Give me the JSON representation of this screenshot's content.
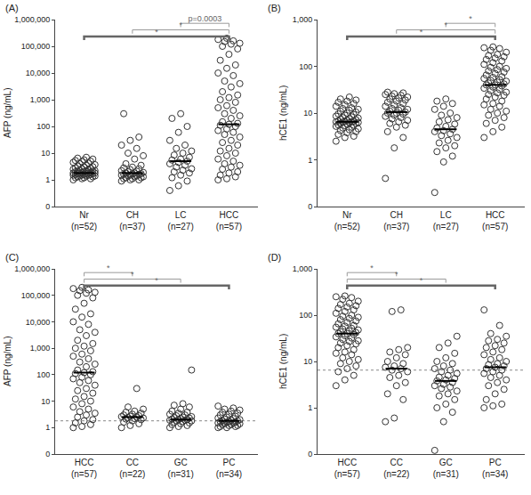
{
  "chart_data": [
    {
      "type": "scatter",
      "title": "(A)",
      "y_label": "AFP (ng/mL)",
      "categories": [
        "Nr",
        "CH",
        "LC",
        "HCC"
      ],
      "n_labels": [
        "(n=52)",
        "(n=37)",
        "(n=27)",
        "(n=57)"
      ],
      "values": [
        [
          1.0,
          1.1,
          1.1,
          1.2,
          1.2,
          1.3,
          1.3,
          1.4,
          1.4,
          1.4,
          1.5,
          1.5,
          1.5,
          1.6,
          1.6,
          1.6,
          1.7,
          1.7,
          1.7,
          1.8,
          1.8,
          1.8,
          1.8,
          1.9,
          1.9,
          2.0,
          2.0,
          2.1,
          2.1,
          2.2,
          2.2,
          2.3,
          2.4,
          2.5,
          2.6,
          2.7,
          2.8,
          3.0,
          3.1,
          3.3,
          3.5,
          3.7,
          4.0,
          4.2,
          4.5,
          4.8,
          5.0,
          5.3,
          5.6,
          6.0,
          6.5,
          7.0
        ],
        [
          0.9,
          1.0,
          1.0,
          1.1,
          1.1,
          1.2,
          1.2,
          1.3,
          1.3,
          1.4,
          1.4,
          1.5,
          1.5,
          1.6,
          1.6,
          1.7,
          1.7,
          1.8,
          1.8,
          1.9,
          2.0,
          2.1,
          2.2,
          2.4,
          2.6,
          2.8,
          3.0,
          3.5,
          4.0,
          6.0,
          8.0,
          10,
          15,
          20,
          30,
          40,
          300
        ],
        [
          0.4,
          0.6,
          0.9,
          1.2,
          1.5,
          1.8,
          2.0,
          2.3,
          2.6,
          3.0,
          3.5,
          4.0,
          4.5,
          5.0,
          5.5,
          6.0,
          7.0,
          8.5,
          10,
          12,
          15,
          20,
          30,
          60,
          100,
          200,
          300
        ],
        [
          1.0,
          1.1,
          1.3,
          1.5,
          1.8,
          2.0,
          2.5,
          3.0,
          3.5,
          4.0,
          5.0,
          6.0,
          8.0,
          10,
          12,
          15,
          20,
          25,
          30,
          40,
          50,
          60,
          70,
          80,
          100,
          110,
          120,
          130,
          150,
          200,
          250,
          300,
          400,
          500,
          600,
          800,
          1000,
          1200,
          1500,
          2000,
          3000,
          4000,
          5000,
          8000,
          10000,
          15000,
          20000,
          30000,
          50000,
          80000,
          100000,
          120000,
          130000,
          150000,
          160000,
          180000,
          200000
        ]
      ],
      "medians": [
        1.8,
        1.8,
        5,
        120
      ],
      "log": "y",
      "grid": false,
      "ylim": [
        0.1,
        1000000
      ],
      "yticks": [
        {
          "value": 0.1,
          "label": "0"
        },
        1,
        10,
        100,
        {
          "value": 1000,
          "label": "1,000"
        },
        {
          "value": 10000,
          "label": "10,000"
        },
        {
          "value": 100000,
          "label": "100,000"
        },
        {
          "value": 1000000,
          "label": "1,000,000"
        }
      ],
      "comparisons": [
        {
          "from": "LC",
          "to": "HCC",
          "text": "p=0.0003"
        },
        {
          "from": "CH",
          "to": "HCC",
          "text": "*"
        },
        {
          "from": "Nr",
          "to": "HCC",
          "text": "*"
        }
      ]
    },
    {
      "type": "scatter",
      "title": "(B)",
      "y_label": "hCE1 (ng/mL)",
      "categories": [
        "Nr",
        "CH",
        "LC",
        "HCC"
      ],
      "n_labels": [
        "(n=52)",
        "(n=37)",
        "(n=27)",
        "(n=57)"
      ],
      "values": [
        [
          2.5,
          3.0,
          3.2,
          3.5,
          3.8,
          4.0,
          4.2,
          4.4,
          4.6,
          4.8,
          5.0,
          5.2,
          5.4,
          5.5,
          5.6,
          5.8,
          6.0,
          6.0,
          6.2,
          6.3,
          6.4,
          6.5,
          6.5,
          6.6,
          6.7,
          6.8,
          7.0,
          7.2,
          7.4,
          7.6,
          7.8,
          8.0,
          8.3,
          8.6,
          9.0,
          9.3,
          9.6,
          10,
          10.5,
          11,
          11.5,
          12,
          12.5,
          13,
          14,
          15,
          16,
          17,
          18,
          19,
          20,
          22
        ],
        [
          0.4,
          1.8,
          3.0,
          4.0,
          5.0,
          5.5,
          6.0,
          6.5,
          7.0,
          7.5,
          8.0,
          8.5,
          9.0,
          9.5,
          10,
          10,
          10.5,
          11,
          11.5,
          12,
          12.5,
          13,
          14,
          15,
          16,
          17,
          18,
          19,
          20,
          21,
          22,
          23,
          24,
          25,
          26,
          27,
          28
        ],
        [
          0.2,
          0.9,
          1.2,
          1.5,
          1.8,
          2.0,
          2.3,
          2.6,
          3.0,
          3.3,
          3.6,
          4.0,
          4.2,
          4.5,
          4.8,
          5.2,
          5.8,
          6.5,
          7.2,
          8.0,
          9.0,
          10,
          12,
          14,
          16,
          18,
          20
        ],
        [
          3.0,
          4.0,
          5.0,
          6.0,
          7.0,
          8.0,
          9.0,
          10,
          11,
          12,
          14,
          15,
          16,
          18,
          20,
          22,
          24,
          25,
          27,
          28,
          30,
          32,
          34,
          36,
          38,
          40,
          40,
          42,
          44,
          46,
          48,
          50,
          52,
          55,
          58,
          60,
          65,
          70,
          75,
          80,
          85,
          90,
          95,
          100,
          110,
          120,
          130,
          140,
          150,
          160,
          170,
          180,
          200,
          220,
          240,
          250,
          260
        ]
      ],
      "medians": [
        6.5,
        10.5,
        4.5,
        40
      ],
      "log": "y",
      "grid": false,
      "ylim": [
        0.1,
        1000
      ],
      "yticks": [
        {
          "value": 0.1,
          "label": "0"
        },
        1,
        10,
        100,
        {
          "value": 1000,
          "label": "1,000"
        }
      ],
      "comparisons": [
        {
          "from": "LC",
          "to": "HCC",
          "text": "*"
        },
        {
          "from": "CH",
          "to": "HCC",
          "text": "*"
        },
        {
          "from": "Nr",
          "to": "HCC",
          "text": "*"
        }
      ]
    },
    {
      "type": "scatter",
      "title": "(C)",
      "y_label": "AFP (ng/mL)",
      "categories": [
        "HCC",
        "CC",
        "GC",
        "PC"
      ],
      "n_labels": [
        "(n=57)",
        "(n=22)",
        "(n=31)",
        "(n=34)"
      ],
      "values": [
        [
          1.0,
          1.1,
          1.3,
          1.5,
          1.8,
          2.0,
          2.5,
          3.0,
          3.5,
          4.0,
          5.0,
          6.0,
          8.0,
          10,
          12,
          15,
          20,
          25,
          30,
          40,
          50,
          60,
          70,
          80,
          100,
          110,
          120,
          130,
          150,
          200,
          250,
          300,
          400,
          500,
          600,
          800,
          1000,
          1200,
          1500,
          2000,
          3000,
          4000,
          5000,
          8000,
          10000,
          15000,
          20000,
          30000,
          50000,
          80000,
          100000,
          120000,
          130000,
          150000,
          160000,
          180000,
          200000
        ],
        [
          1.0,
          1.2,
          1.4,
          1.6,
          1.8,
          2.0,
          2.1,
          2.2,
          2.3,
          2.4,
          2.5,
          2.6,
          2.7,
          2.8,
          3.0,
          3.2,
          3.5,
          3.8,
          4.2,
          5.0,
          6.0,
          30
        ],
        [
          1.0,
          1.1,
          1.2,
          1.3,
          1.4,
          1.5,
          1.6,
          1.7,
          1.8,
          1.8,
          1.9,
          1.9,
          2.0,
          2.0,
          2.1,
          2.2,
          2.3,
          2.4,
          2.5,
          2.6,
          2.8,
          3.0,
          3.2,
          3.5,
          3.8,
          4.2,
          5.0,
          6.0,
          7.0,
          8.0,
          150
        ],
        [
          1.0,
          1.0,
          1.1,
          1.1,
          1.2,
          1.2,
          1.3,
          1.3,
          1.4,
          1.4,
          1.5,
          1.5,
          1.6,
          1.6,
          1.7,
          1.7,
          1.8,
          1.8,
          1.9,
          2.0,
          2.1,
          2.2,
          2.3,
          2.5,
          2.7,
          3.0,
          3.2,
          3.5,
          3.8,
          4.2,
          4.6,
          5.0,
          5.5,
          6.5
        ]
      ],
      "medians": [
        120,
        2.5,
        2,
        1.8
      ],
      "reference_line": 1.8,
      "log": "y",
      "grid": false,
      "ylim": [
        0.1,
        1000000
      ],
      "yticks": [
        {
          "value": 0.1,
          "label": "0"
        },
        1,
        10,
        100,
        {
          "value": 1000,
          "label": "1,000"
        },
        {
          "value": 10000,
          "label": "10,000"
        },
        {
          "value": 100000,
          "label": "100,000"
        },
        {
          "value": 1000000,
          "label": "1,000,000"
        }
      ],
      "comparisons": [
        {
          "from": "HCC",
          "to": "CC",
          "text": "*"
        },
        {
          "from": "HCC",
          "to": "GC",
          "text": "*"
        },
        {
          "from": "HCC",
          "to": "PC",
          "text": "*"
        }
      ]
    },
    {
      "type": "scatter",
      "title": "(D)",
      "y_label": "hCE1 (ng/mL)",
      "categories": [
        "HCC",
        "CC",
        "GC",
        "PC"
      ],
      "n_labels": [
        "(n=57)",
        "(n=22)",
        "(n=31)",
        "(n=34)"
      ],
      "values": [
        [
          3.0,
          4.0,
          5.0,
          6.0,
          7.0,
          8.0,
          9.0,
          10,
          11,
          12,
          14,
          15,
          16,
          18,
          20,
          22,
          24,
          25,
          27,
          28,
          30,
          32,
          34,
          36,
          38,
          40,
          40,
          42,
          44,
          46,
          48,
          50,
          52,
          55,
          58,
          60,
          65,
          70,
          75,
          80,
          85,
          90,
          95,
          100,
          110,
          120,
          130,
          140,
          150,
          160,
          170,
          180,
          200,
          220,
          240,
          250,
          260
        ],
        [
          0.5,
          0.6,
          1.5,
          2.0,
          3.0,
          3.5,
          4.5,
          5.0,
          6.0,
          6.5,
          7.0,
          7.5,
          8.0,
          9.0,
          10,
          12,
          14,
          16,
          18,
          20,
          120,
          130
        ],
        [
          0.12,
          0.5,
          0.8,
          1.0,
          1.2,
          1.5,
          1.8,
          2.0,
          2.3,
          2.6,
          2.8,
          3.0,
          3.2,
          3.5,
          3.8,
          4.0,
          4.3,
          4.6,
          5.0,
          5.5,
          6.0,
          6.5,
          7.0,
          8.0,
          9.0,
          10,
          12,
          15,
          20,
          25,
          35
        ],
        [
          1.0,
          1.1,
          1.2,
          1.5,
          2.0,
          2.5,
          3.0,
          3.5,
          4.0,
          4.5,
          5.0,
          5.5,
          6.0,
          6.5,
          7.0,
          7.5,
          8.0,
          8.5,
          9.0,
          10,
          11,
          12,
          14,
          16,
          18,
          20,
          22,
          25,
          28,
          30,
          35,
          40,
          60,
          130
        ]
      ],
      "medians": [
        40,
        7,
        3.8,
        7.5
      ],
      "reference_line": 6.5,
      "log": "y",
      "grid": false,
      "ylim": [
        0.1,
        1000
      ],
      "yticks": [
        {
          "value": 0.1,
          "label": "0"
        },
        1,
        10,
        100,
        {
          "value": 1000,
          "label": "1,000"
        }
      ],
      "comparisons": [
        {
          "from": "HCC",
          "to": "CC",
          "text": "*"
        },
        {
          "from": "HCC",
          "to": "GC",
          "text": "*"
        },
        {
          "from": "HCC",
          "to": "PC",
          "text": "*"
        }
      ]
    }
  ]
}
